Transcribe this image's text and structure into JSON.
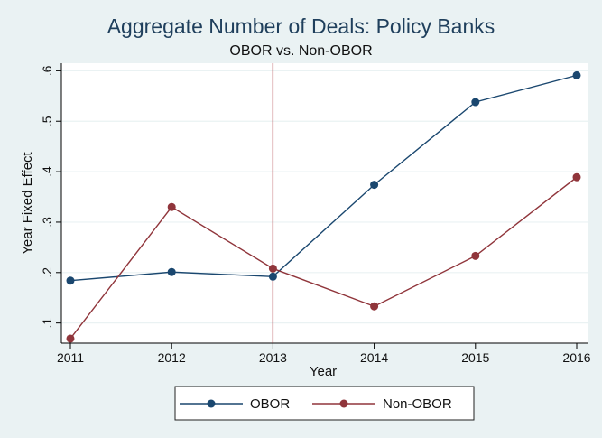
{
  "chart_data": {
    "type": "line",
    "title": "Aggregate Number of Deals: Policy Banks",
    "subtitle": "OBOR vs. Non-OBOR",
    "xlabel": "Year",
    "ylabel": "Year Fixed Effect",
    "x": [
      2011,
      2012,
      2013,
      2014,
      2015,
      2016
    ],
    "xlim": [
      2011,
      2016
    ],
    "ylim": [
      0.06,
      0.615
    ],
    "yticks": [
      0.1,
      0.2,
      0.3,
      0.4,
      0.5,
      0.6
    ],
    "ytick_labels": [
      ".1",
      ".2",
      ".3",
      ".4",
      ".5",
      ".6"
    ],
    "xtick_labels": [
      "2011",
      "2012",
      "2013",
      "2014",
      "2015",
      "2016"
    ],
    "grid": true,
    "reference_line": {
      "x": 2013,
      "color": "#a1262e"
    },
    "legend_position": "bottom",
    "series": [
      {
        "name": "OBOR",
        "color": "#1a476f",
        "values": [
          0.184,
          0.201,
          0.192,
          0.374,
          0.538,
          0.591
        ]
      },
      {
        "name": "Non-OBOR",
        "color": "#90353b",
        "values": [
          0.069,
          0.33,
          0.208,
          0.133,
          0.233,
          0.389
        ]
      }
    ]
  }
}
